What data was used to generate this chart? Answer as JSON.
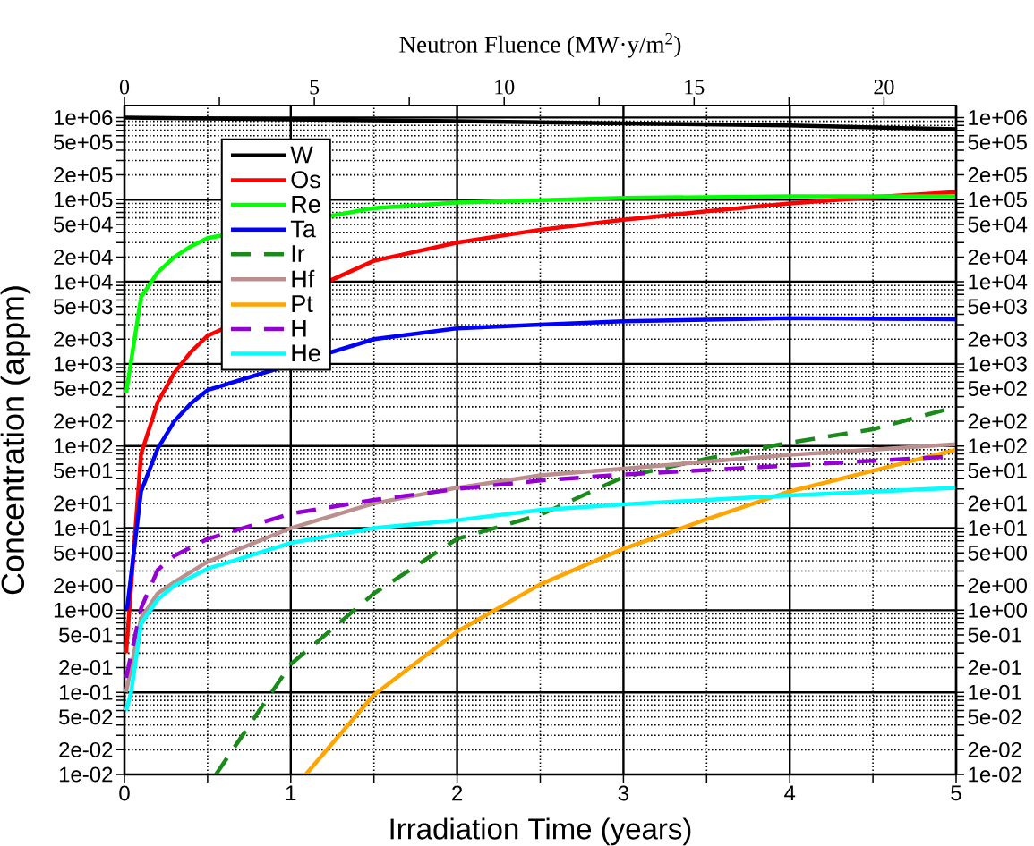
{
  "chart_data": {
    "type": "line",
    "xlabel": "Irradiation Time (years)",
    "ylabel": "Concentration (appm)",
    "x2label": "Neutron Fluence (MW·y/m$^{2}$)",
    "xlim": [
      0,
      5
    ],
    "ylim": [
      0.01,
      1400000
    ],
    "x2lim": [
      0,
      21.9
    ],
    "log": "y",
    "grid": true,
    "legend": "top left",
    "xticks": [
      0,
      {
        "value": 0.5,
        "label": null
      },
      1,
      {
        "value": 1.5,
        "label": null
      },
      2,
      {
        "value": 2.5,
        "label": null
      },
      3,
      {
        "value": 3.5,
        "label": null
      },
      4,
      {
        "value": 4.5,
        "label": null
      },
      5
    ],
    "x2ticks": [
      0,
      {
        "value": 2.5,
        "label": null
      },
      5,
      {
        "value": 7.5,
        "label": null
      },
      10,
      {
        "value": 12.5,
        "label": null
      },
      15,
      {
        "value": 17.5,
        "label": null
      },
      20
    ],
    "yticks": [
      {
        "value": 0.01,
        "label": "1e-02"
      },
      {
        "value": 0.02,
        "label": "2e-02"
      },
      {
        "value": 0.03,
        "label": null
      },
      {
        "value": 0.04,
        "label": null
      },
      {
        "value": 0.05,
        "label": "5e-02"
      },
      {
        "value": 0.06,
        "label": null
      },
      {
        "value": 0.07,
        "label": null
      },
      {
        "value": 0.08,
        "label": null
      },
      {
        "value": 0.09,
        "label": null
      },
      {
        "value": 0.1,
        "label": "1e-01"
      },
      {
        "value": 0.2,
        "label": "2e-01"
      },
      {
        "value": 0.3,
        "label": null
      },
      {
        "value": 0.4,
        "label": null
      },
      {
        "value": 0.5,
        "label": "5e-01"
      },
      {
        "value": 0.6,
        "label": null
      },
      {
        "value": 0.7,
        "label": null
      },
      {
        "value": 0.8,
        "label": null
      },
      {
        "value": 0.9,
        "label": null
      },
      {
        "value": 1,
        "label": "1e+00"
      },
      {
        "value": 2,
        "label": "2e+00"
      },
      {
        "value": 3,
        "label": null
      },
      {
        "value": 4,
        "label": null
      },
      {
        "value": 5,
        "label": "5e+00"
      },
      {
        "value": 6,
        "label": null
      },
      {
        "value": 7,
        "label": null
      },
      {
        "value": 8,
        "label": null
      },
      {
        "value": 9,
        "label": null
      },
      {
        "value": 10,
        "label": "1e+01"
      },
      {
        "value": 20,
        "label": "2e+01"
      },
      {
        "value": 30,
        "label": null
      },
      {
        "value": 40,
        "label": null
      },
      {
        "value": 50,
        "label": "5e+01"
      },
      {
        "value": 60,
        "label": null
      },
      {
        "value": 70,
        "label": null
      },
      {
        "value": 80,
        "label": null
      },
      {
        "value": 90,
        "label": null
      },
      {
        "value": 100,
        "label": "1e+02"
      },
      {
        "value": 200,
        "label": "2e+02"
      },
      {
        "value": 300,
        "label": null
      },
      {
        "value": 400,
        "label": null
      },
      {
        "value": 500,
        "label": "5e+02"
      },
      {
        "value": 600,
        "label": null
      },
      {
        "value": 700,
        "label": null
      },
      {
        "value": 800,
        "label": null
      },
      {
        "value": 900,
        "label": null
      },
      {
        "value": 1000,
        "label": "1e+03"
      },
      {
        "value": 2000,
        "label": "2e+03"
      },
      {
        "value": 3000,
        "label": null
      },
      {
        "value": 4000,
        "label": null
      },
      {
        "value": 5000,
        "label": "5e+03"
      },
      {
        "value": 6000,
        "label": null
      },
      {
        "value": 7000,
        "label": null
      },
      {
        "value": 8000,
        "label": null
      },
      {
        "value": 9000,
        "label": null
      },
      {
        "value": 10000,
        "label": "1e+04"
      },
      {
        "value": 20000,
        "label": "2e+04"
      },
      {
        "value": 30000,
        "label": null
      },
      {
        "value": 40000,
        "label": null
      },
      {
        "value": 50000,
        "label": "5e+04"
      },
      {
        "value": 60000,
        "label": null
      },
      {
        "value": 70000,
        "label": null
      },
      {
        "value": 80000,
        "label": null
      },
      {
        "value": 90000,
        "label": null
      },
      {
        "value": 100000,
        "label": "1e+05"
      },
      {
        "value": 200000,
        "label": "2e+05"
      },
      {
        "value": 300000,
        "label": null
      },
      {
        "value": 400000,
        "label": null
      },
      {
        "value": 500000,
        "label": "5e+05"
      },
      {
        "value": 600000,
        "label": null
      },
      {
        "value": 700000,
        "label": null
      },
      {
        "value": 800000,
        "label": null
      },
      {
        "value": 900000,
        "label": null
      },
      {
        "value": 1000000,
        "label": "1e+06"
      }
    ],
    "series": [
      {
        "name": "W",
        "color": "#000000",
        "x": [
          0,
          1,
          2,
          3,
          4,
          5
        ],
        "values": [
          1000000,
          950000,
          900000,
          850000,
          800000,
          720000
        ]
      },
      {
        "name": "Os",
        "color": "#ff0000",
        "x": [
          0.01,
          0.1,
          0.2,
          0.3,
          0.4,
          0.5,
          1.5,
          2,
          2.5,
          3,
          3.5,
          4,
          4.5,
          5
        ],
        "values": [
          0.3,
          80,
          340,
          780,
          1400,
          2200,
          18000,
          30000,
          43000,
          57000,
          72000,
          90000,
          107000,
          124000
        ]
      },
      {
        "name": "Re",
        "color": "#00ff00",
        "x": [
          0.01,
          0.1,
          0.2,
          0.3,
          0.4,
          0.5,
          1.5,
          2,
          3,
          4,
          5
        ],
        "values": [
          440,
          6500,
          13000,
          20000,
          27000,
          34000,
          79000,
          92000,
          105000,
          110000,
          110000
        ]
      },
      {
        "name": "Ta",
        "color": "#0000ff",
        "x": [
          0.015,
          0.1,
          0.2,
          0.3,
          0.4,
          0.5,
          1.5,
          2,
          2.5,
          3,
          4,
          5
        ],
        "values": [
          1.0,
          28,
          93,
          200,
          330,
          480,
          2000,
          2700,
          3000,
          3300,
          3600,
          3500
        ]
      },
      {
        "name": "Ir",
        "color": "#1a8a1a",
        "line_style": "dashed",
        "x": [
          0.55,
          1,
          1.5,
          2,
          2.5,
          3,
          3.5,
          4,
          4.5,
          5
        ],
        "values": [
          0.01,
          0.22,
          1.6,
          7.4,
          14.5,
          42,
          70,
          110,
          160,
          300
        ]
      },
      {
        "name": "Hf",
        "color": "#bc8f8f",
        "x": [
          0.01,
          0.1,
          0.2,
          0.3,
          0.5,
          1,
          1.5,
          2,
          2.5,
          3,
          4,
          5
        ],
        "values": [
          0.1,
          0.8,
          1.6,
          2.2,
          3.9,
          10,
          20,
          31,
          44,
          53,
          78,
          105
        ]
      },
      {
        "name": "Pt",
        "color": "#ffa500",
        "x": [
          1.09,
          1.5,
          2,
          2.5,
          3,
          3.5,
          4,
          4.5,
          5
        ],
        "values": [
          0.01,
          0.093,
          0.55,
          2.07,
          5.6,
          12.8,
          28,
          50,
          90
        ]
      },
      {
        "name": "H",
        "color": "#9400d3",
        "line_style": "dashed",
        "x": [
          0.01,
          0.1,
          0.2,
          0.3,
          0.5,
          1,
          1.5,
          2,
          2.5,
          3,
          4,
          5
        ],
        "values": [
          0.15,
          1.06,
          3.1,
          4.6,
          7.4,
          15,
          22,
          30,
          38,
          45,
          58,
          75
        ]
      },
      {
        "name": "He",
        "color": "#00ffff",
        "x": [
          0.01,
          0.04,
          0.1,
          0.2,
          0.3,
          0.5,
          1,
          1.5,
          2,
          2.5,
          3,
          4,
          5
        ],
        "values": [
          0.06,
          0.1,
          0.69,
          1.35,
          2.0,
          3.2,
          6.6,
          10,
          12.5,
          16.6,
          19.5,
          25,
          31
        ]
      }
    ]
  }
}
